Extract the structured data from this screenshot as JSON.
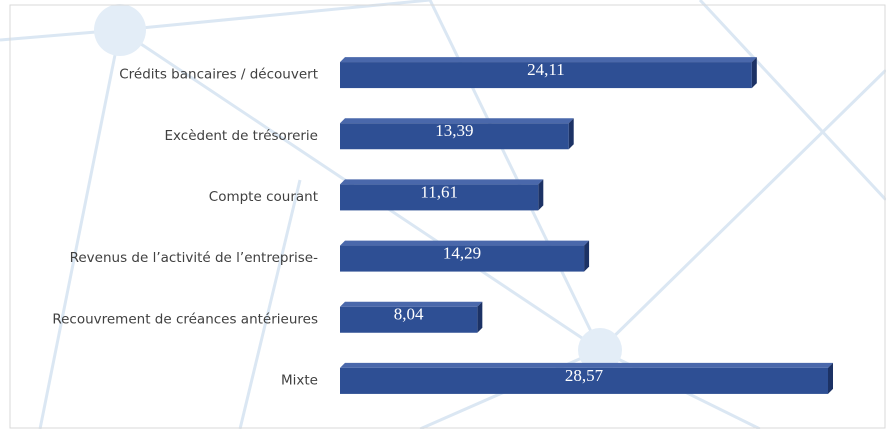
{
  "chart_data": {
    "type": "bar",
    "orientation": "horizontal",
    "categories": [
      "Crédits bancaires / découvert",
      "Excèdent de trésorerie",
      "Compte courant",
      "Revenus de l’activité de l’entreprise-",
      "Recouvrement de créances antérieures",
      "Mixte"
    ],
    "values": [
      24.11,
      13.39,
      11.61,
      14.29,
      8.04,
      28.57
    ],
    "value_labels": [
      "24,11",
      "13,39",
      "11,61",
      "14,29",
      "8,04",
      "28,57"
    ],
    "color": "#2e4f94"
  }
}
